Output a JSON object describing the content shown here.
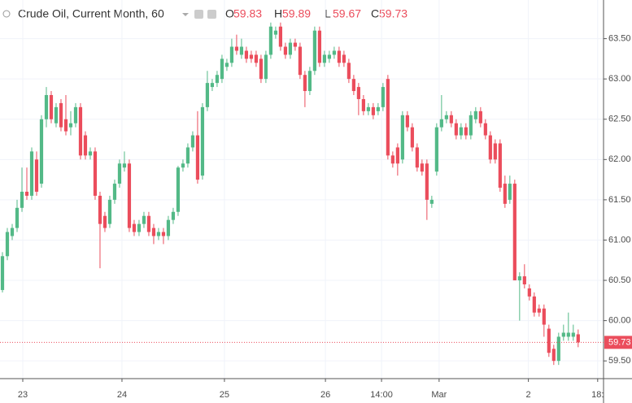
{
  "chart_data": {
    "type": "candlestick",
    "title": "Crude Oil, Current Month, 60",
    "legend": [
      {
        "label": "O",
        "value": 59.83
      },
      {
        "label": "H",
        "value": 59.89
      },
      {
        "label": "L",
        "value": 59.67
      },
      {
        "label": "C",
        "value": 59.73
      }
    ],
    "last_price": 59.73,
    "up_color": "#53b987",
    "down_color": "#eb4d5c",
    "grid": true,
    "ylim": [
      59.28,
      63.98
    ],
    "yticks": [
      {
        "value": 59.5,
        "label": "59.50"
      },
      {
        "value": 60,
        "label": "60.00"
      },
      {
        "value": 60.5,
        "label": "60.50"
      },
      {
        "value": 61,
        "label": "61.00"
      },
      {
        "value": 61.5,
        "label": "61.50"
      },
      {
        "value": 62,
        "label": "62.00"
      },
      {
        "value": 62.5,
        "label": "62.50"
      },
      {
        "value": 63,
        "label": "63.00"
      },
      {
        "value": 63.5,
        "label": "63.50"
      }
    ],
    "xlim": [
      -0.5,
      123.2
    ],
    "xticks": [
      {
        "value": 4.17,
        "label": "23"
      },
      {
        "value": 24.5,
        "label": "24"
      },
      {
        "value": 45.5,
        "label": "25"
      },
      {
        "value": 66.2,
        "label": "26"
      },
      {
        "value": 77.7,
        "label": "14:00"
      },
      {
        "value": 89.5,
        "label": "Mar"
      },
      {
        "value": 107.8,
        "label": "2"
      },
      {
        "value": 122,
        "label": "18:"
      }
    ],
    "open": [
      60.38,
      60.8,
      61.05,
      61.15,
      61.4,
      61.6,
      61.55,
      62.0,
      61.7,
      62.5,
      62.8,
      62.45,
      62.7,
      62.5,
      62.4,
      62.45,
      62.65,
      62.3,
      62.05,
      62.1,
      61.55,
      61.3,
      61.2,
      61.5,
      61.7,
      61.9,
      61.95,
      61.2,
      61.1,
      61.2,
      61.3,
      61.15,
      61.05,
      61.1,
      61.05,
      61.25,
      61.35,
      61.9,
      61.95,
      62.15,
      62.3,
      61.8,
      62.65,
      62.9,
      62.95,
      63.0,
      63.15,
      63.2,
      63.4,
      63.3,
      63.35,
      63.3,
      63.3,
      63.25,
      63.0,
      63.3,
      63.55,
      63.65,
      63.4,
      63.3,
      63.45,
      63.4,
      63.05,
      62.85,
      63.1,
      63.6,
      63.2,
      63.25,
      63.3,
      63.35,
      63.3,
      63.2,
      63.0,
      62.9,
      62.75,
      62.6,
      62.65,
      62.6,
      62.65,
      63.0,
      62.05,
      62.15,
      62.0,
      62.55,
      62.4,
      62.15,
      61.95,
      61.95,
      61.45,
      61.85,
      62.4,
      62.5,
      62.55,
      62.45,
      62.3,
      62.4,
      62.3,
      62.5,
      62.6,
      62.45,
      62.3,
      62.2,
      62.2,
      61.7,
      61.5,
      61.7,
      60.5,
      60.55,
      60.4,
      60.3,
      60.15,
      60.15,
      59.9,
      59.65,
      59.5,
      59.8,
      59.8,
      59.8,
      59.83
    ],
    "high": [
      60.85,
      61.15,
      61.2,
      61.5,
      61.9,
      61.9,
      62.15,
      62.1,
      62.55,
      62.9,
      62.85,
      62.7,
      62.75,
      62.8,
      62.6,
      62.7,
      62.7,
      62.35,
      62.15,
      62.15,
      61.6,
      61.35,
      61.55,
      61.75,
      62.0,
      62.1,
      62.0,
      61.25,
      61.25,
      61.35,
      61.35,
      61.2,
      61.15,
      61.15,
      61.3,
      61.4,
      61.92,
      62.0,
      62.2,
      62.35,
      62.6,
      62.7,
      63.1,
      63.0,
      63.1,
      63.3,
      63.25,
      63.5,
      63.55,
      63.5,
      63.4,
      63.35,
      63.35,
      63.3,
      63.35,
      63.7,
      63.65,
      63.7,
      63.45,
      63.5,
      63.5,
      63.45,
      63.1,
      63.15,
      63.65,
      63.65,
      63.35,
      63.35,
      63.4,
      63.4,
      63.35,
      63.25,
      63.05,
      62.95,
      62.8,
      62.7,
      62.7,
      62.7,
      62.95,
      63.05,
      62.1,
      62.2,
      62.6,
      62.6,
      62.45,
      62.2,
      62.0,
      62.0,
      61.55,
      62.45,
      62.8,
      62.6,
      62.6,
      62.5,
      62.45,
      62.45,
      62.6,
      62.65,
      62.65,
      62.5,
      62.35,
      62.25,
      62.25,
      61.8,
      61.8,
      61.75,
      60.6,
      60.7,
      60.45,
      60.35,
      60.2,
      60.2,
      59.95,
      59.7,
      59.85,
      59.95,
      60.1,
      59.95,
      59.89
    ],
    "low": [
      60.35,
      60.75,
      61.0,
      61.1,
      61.35,
      61.5,
      61.5,
      61.55,
      61.65,
      62.4,
      62.45,
      62.4,
      62.35,
      62.3,
      62.3,
      62.4,
      62.0,
      62.0,
      62.0,
      61.5,
      60.65,
      61.1,
      61.15,
      61.45,
      61.65,
      61.85,
      61.1,
      61.05,
      61.05,
      61.15,
      61.05,
      60.95,
      61.0,
      60.95,
      61.0,
      61.2,
      61.3,
      61.85,
      61.9,
      62.1,
      61.7,
      61.75,
      62.6,
      62.85,
      62.9,
      62.95,
      63.1,
      63.15,
      63.3,
      63.25,
      63.2,
      63.2,
      63.15,
      62.95,
      62.95,
      63.25,
      63.5,
      63.35,
      63.25,
      63.25,
      63.35,
      63.0,
      62.65,
      62.8,
      63.05,
      63.15,
      63.15,
      63.2,
      63.25,
      63.15,
      63.15,
      62.95,
      62.8,
      62.55,
      62.55,
      62.55,
      62.5,
      62.55,
      62.6,
      62.0,
      61.9,
      61.8,
      61.95,
      62.35,
      62.1,
      61.85,
      61.8,
      61.25,
      61.4,
      61.8,
      62.35,
      62.45,
      62.4,
      62.25,
      62.25,
      62.25,
      62.25,
      62.45,
      62.4,
      62.25,
      61.95,
      61.95,
      61.6,
      61.4,
      61.45,
      60.5,
      60.0,
      60.4,
      60.25,
      60.05,
      60.05,
      59.8,
      59.55,
      59.45,
      59.45,
      59.75,
      59.75,
      59.75,
      59.67
    ],
    "close": [
      60.8,
      61.1,
      61.15,
      61.4,
      61.6,
      61.55,
      62.1,
      61.6,
      62.5,
      62.8,
      62.5,
      62.65,
      62.4,
      62.35,
      62.45,
      62.65,
      62.05,
      62.05,
      62.1,
      61.55,
      61.2,
      61.15,
      61.5,
      61.7,
      61.95,
      61.95,
      61.15,
      61.1,
      61.2,
      61.3,
      61.1,
      61.05,
      61.1,
      61.05,
      61.25,
      61.35,
      61.9,
      61.95,
      62.15,
      62.3,
      61.75,
      62.65,
      62.95,
      62.95,
      63.05,
      63.25,
      63.2,
      63.4,
      63.35,
      63.4,
      63.25,
      63.25,
      63.2,
      63.0,
      63.3,
      63.65,
      63.6,
      63.4,
      63.3,
      63.45,
      63.4,
      63.05,
      62.85,
      63.1,
      63.6,
      63.2,
      63.3,
      63.3,
      63.35,
      63.2,
      63.2,
      63.0,
      62.85,
      62.75,
      62.6,
      62.65,
      62.55,
      62.65,
      62.9,
      62.05,
      61.95,
      61.95,
      62.55,
      62.4,
      62.15,
      61.9,
      61.85,
      61.5,
      61.5,
      62.4,
      62.5,
      62.55,
      62.45,
      62.3,
      62.4,
      62.3,
      62.55,
      62.6,
      62.45,
      62.3,
      62.0,
      62.0,
      61.65,
      61.45,
      61.7,
      60.5,
      60.55,
      60.45,
      60.3,
      60.1,
      60.1,
      59.95,
      59.6,
      59.5,
      59.8,
      59.85,
      59.85,
      59.85,
      59.73
    ]
  }
}
